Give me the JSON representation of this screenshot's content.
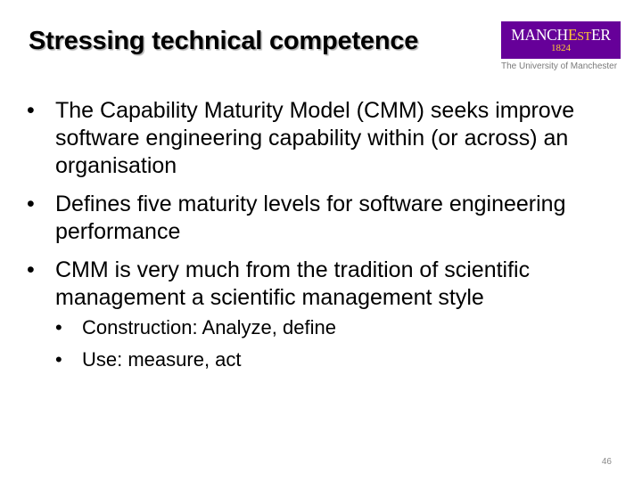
{
  "slide": {
    "title": "Stressing technical competence",
    "logo": {
      "word_part1": "MANCH",
      "word_part2": "E",
      "word_part3": "ST",
      "word_part4": "ER",
      "year": "1824",
      "subtitle": "The University of Manchester",
      "brand_color": "#660099",
      "accent_color": "#ffcc33"
    },
    "bullet_symbol": "•",
    "bullets": [
      {
        "text": "The Capability Maturity Model (CMM) seeks improve software engineering capability within (or across) an organisation"
      },
      {
        "text": "Defines five maturity levels for software engineering performance"
      },
      {
        "text": "CMM is very much from the tradition of scientific management  a scientific management style",
        "sub_bullets": [
          "Construction: Analyze, define",
          "Use: measure, act"
        ]
      }
    ],
    "page_number": "46"
  }
}
